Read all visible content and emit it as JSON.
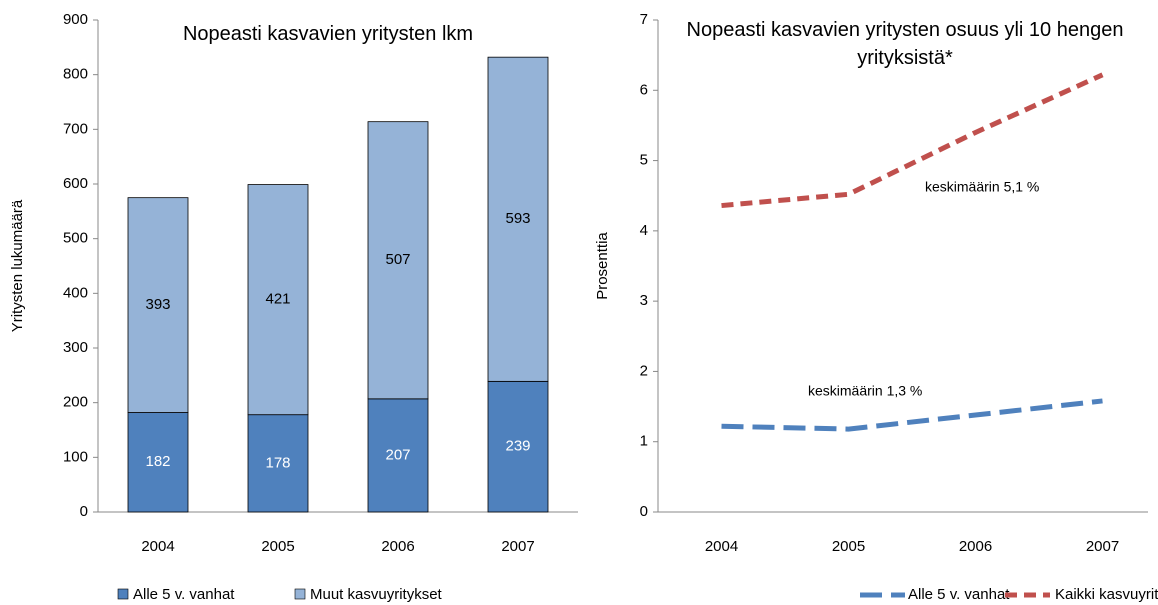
{
  "chart_data": [
    {
      "type": "bar",
      "stacked": true,
      "title": "Nopeasti kasvavien yritysten lkm",
      "y_label": "Yritysten lukumäärä",
      "categories": [
        "2004",
        "2005",
        "2006",
        "2007"
      ],
      "series": [
        {
          "name": "Alle 5 v. vanhat",
          "color": "#4f81bd",
          "label_color": "#ffffff",
          "values": [
            182,
            178,
            207,
            239
          ]
        },
        {
          "name": "Muut kasvuyritykset",
          "color": "#95b3d7",
          "label_color": "#000000",
          "values": [
            393,
            421,
            507,
            593
          ]
        }
      ],
      "ylim": [
        0,
        900
      ],
      "yticks": [
        0,
        100,
        200,
        300,
        400,
        500,
        600,
        700,
        800,
        900
      ],
      "grid": false
    },
    {
      "type": "line",
      "title": "Nopeasti kasvavien yritysten osuus yli 10 hengen yrityksistä*",
      "y_label": "Prosenttia",
      "categories": [
        "2004",
        "2005",
        "2006",
        "2007"
      ],
      "series": [
        {
          "name": "Alle 5 v. vanhat",
          "color": "#4f81bd",
          "dash": "22 9",
          "values": [
            1.22,
            1.18,
            1.38,
            1.58
          ]
        },
        {
          "name": "Kaikki kasvuyritykset",
          "color": "#c0504d",
          "dash": "12 7",
          "values": [
            4.36,
            4.52,
            5.4,
            6.22
          ]
        }
      ],
      "annotations": [
        "keskimäärin 5,1 %",
        "keskimäärin 1,3 %"
      ],
      "ylim": [
        0,
        7
      ],
      "yticks": [
        0,
        1,
        2,
        3,
        4,
        5,
        6,
        7
      ],
      "grid": false
    }
  ]
}
